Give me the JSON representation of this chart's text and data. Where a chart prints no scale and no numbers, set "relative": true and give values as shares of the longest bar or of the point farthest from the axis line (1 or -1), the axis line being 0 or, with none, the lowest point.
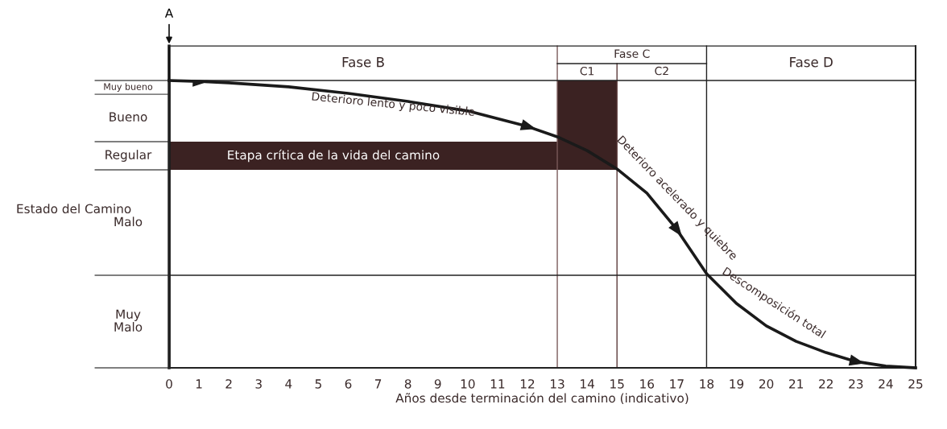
{
  "chart_data": {
    "type": "line",
    "relative": true,
    "xlabel": "Años desde terminación del camino (indicativo)",
    "ylabel": "Estado del Camino",
    "x": [
      0,
      1,
      2,
      4,
      6,
      8,
      10,
      12,
      13,
      14,
      15,
      16,
      17,
      18,
      19,
      20,
      21,
      22,
      23,
      24,
      25
    ],
    "series": [
      {
        "color": "#1a1a1a",
        "values": [
          1.0,
          0.997,
          0.992,
          0.978,
          0.955,
          0.927,
          0.894,
          0.84,
          0.804,
          0.756,
          0.692,
          0.608,
          0.482,
          0.328,
          0.224,
          0.146,
          0.092,
          0.053,
          0.022,
          0.006,
          0.0
        ]
      }
    ],
    "xlim": [
      0,
      25
    ],
    "xticks": [
      0,
      1,
      2,
      3,
      4,
      5,
      6,
      7,
      8,
      9,
      10,
      11,
      12,
      13,
      14,
      15,
      16,
      17,
      18,
      19,
      20,
      21,
      22,
      23,
      24,
      25
    ],
    "bands": [
      {
        "axis": "x",
        "from": 13,
        "to": 15,
        "label": "C1",
        "color": "#3b2222"
      },
      {
        "axis": "y",
        "from": 0.689,
        "to": 0.787,
        "label": "Regular",
        "color": "#3b2222"
      }
    ],
    "ref_lines": [
      {
        "axis": "x",
        "value": 0,
        "label": "A"
      },
      {
        "axis": "x",
        "value": 13,
        "color": "#7a5a5a"
      },
      {
        "axis": "x",
        "value": 15,
        "color": "#5a3a3a"
      },
      {
        "axis": "x",
        "value": 18,
        "color": "#222222"
      },
      {
        "axis": "y",
        "value": 0.322,
        "color": "#222222"
      }
    ],
    "annotations": [
      "Fase B",
      "Fase C",
      "C2",
      "Fase D",
      "Muy bueno",
      "Bueno",
      "Malo",
      "Muy\nMalo",
      "Etapa crítica de la vida del camino",
      "Deterioro lento y poco visible",
      "Deterioro acelerado y quiebre",
      "Descomposición total"
    ]
  }
}
